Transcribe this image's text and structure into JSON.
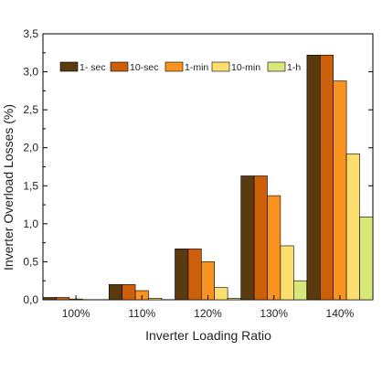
{
  "chart_data": {
    "type": "bar",
    "categories": [
      "100%",
      "110%",
      "120%",
      "130%",
      "140%"
    ],
    "series": [
      {
        "name": "1- sec",
        "color": "#5a3a0f",
        "values": [
          0.03,
          0.2,
          0.67,
          1.63,
          3.22
        ]
      },
      {
        "name": "10-sec",
        "color": "#cc5f0a",
        "values": [
          0.03,
          0.2,
          0.67,
          1.63,
          3.22
        ]
      },
      {
        "name": "1-min",
        "color": "#f7931e",
        "values": [
          0.01,
          0.12,
          0.5,
          1.37,
          2.88
        ]
      },
      {
        "name": "10-min",
        "color": "#fbde6e",
        "values": [
          0.0,
          0.02,
          0.16,
          0.71,
          1.92
        ]
      },
      {
        "name": "1-h",
        "color": "#d9e67a",
        "values": [
          0.0,
          0.0,
          0.02,
          0.25,
          1.09
        ]
      }
    ],
    "xlabel": "Inverter Loading Ratio",
    "ylabel": "Inverter Overload Losses (%)",
    "ylim": [
      0,
      3.5
    ],
    "yticks": [
      "0,0",
      "0,5",
      "1,0",
      "1,5",
      "2,0",
      "2,5",
      "3,0",
      "3,5"
    ],
    "grid": false,
    "legend_position": "top-left"
  }
}
